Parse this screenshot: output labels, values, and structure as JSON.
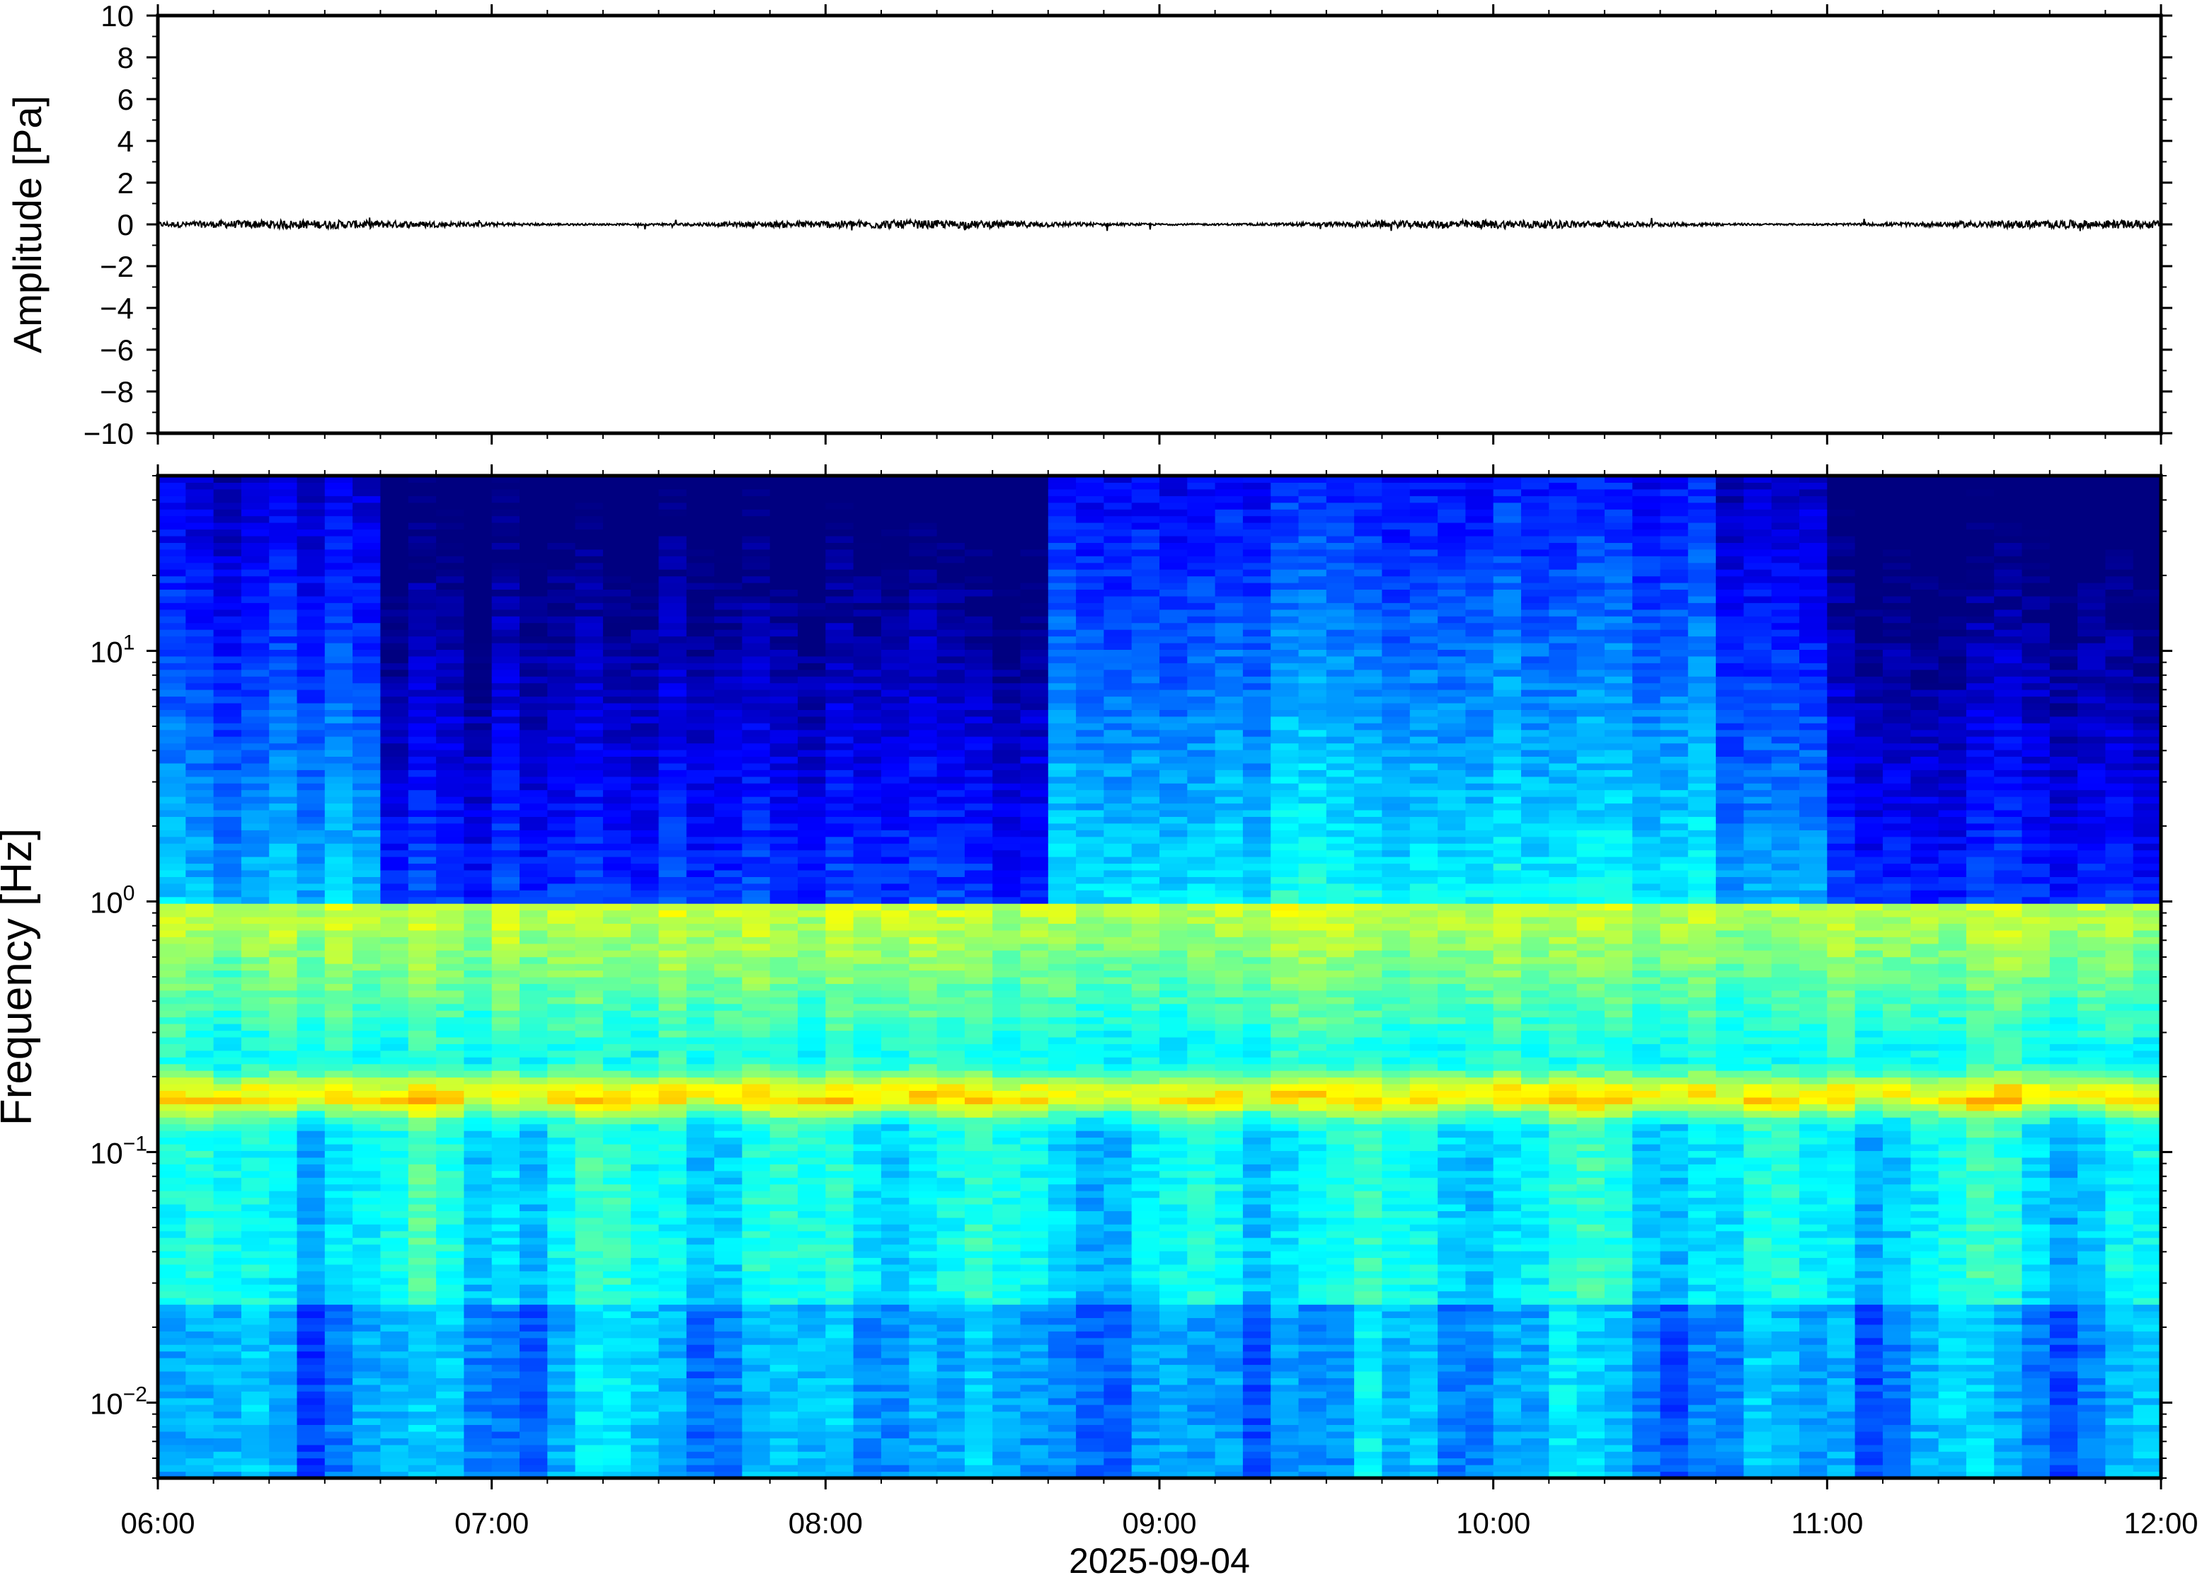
{
  "chart_data": [
    {
      "type": "line",
      "panel": "waveform",
      "title": "",
      "ylabel": "Amplitude [Pa]",
      "xlabel": "",
      "ylim": [
        -10,
        10
      ],
      "yticks": [
        -10,
        -8,
        -6,
        -4,
        -2,
        0,
        2,
        4,
        6,
        8,
        10
      ],
      "ytick_labels": [
        "−10",
        "−8",
        "−6",
        "−4",
        "−2",
        "0",
        "2",
        "4",
        "6",
        "8",
        "10"
      ],
      "xlim": [
        "2025-09-04T06:00",
        "2025-09-04T12:00"
      ],
      "grid": false,
      "series": [
        {
          "trace_color": "#000000",
          "baseline": 0,
          "noise_amplitude": 0.2,
          "peak_amplitude": 0.35
        }
      ]
    },
    {
      "type": "heatmap",
      "panel": "spectrogram",
      "title": "",
      "ylabel": "Frequency [Hz]",
      "xlabel": "2025-09-04",
      "yscale": "log",
      "ylim": [
        0.005,
        50
      ],
      "yticks": [
        {
          "value": 0.01,
          "base": "10",
          "exp": "−2"
        },
        {
          "value": 0.1,
          "base": "10",
          "exp": "−1"
        },
        {
          "value": 1,
          "base": "10",
          "exp": "0"
        },
        {
          "value": 10,
          "base": "10",
          "exp": "1"
        }
      ],
      "xlim": [
        "2025-09-04T06:00",
        "2025-09-04T12:00"
      ],
      "xticks": [
        "06:00",
        "07:00",
        "08:00",
        "09:00",
        "10:00",
        "11:00",
        "12:00"
      ],
      "colormap": "jet",
      "colormap_stops": [
        "#000080",
        "#0000ff",
        "#0080ff",
        "#00ffff",
        "#80ff80",
        "#ffff00",
        "#ff8000",
        "#ff0000"
      ],
      "dominant_band_hz": [
        0.14,
        0.22
      ],
      "band_peak_hz": 0.17,
      "time_bin_minutes": 5,
      "quiet_intervals": [
        [
          "06:40",
          "08:40"
        ],
        [
          "11:00",
          "12:00"
        ]
      ],
      "active_intervals": [
        [
          "08:40",
          "10:40"
        ]
      ]
    }
  ]
}
